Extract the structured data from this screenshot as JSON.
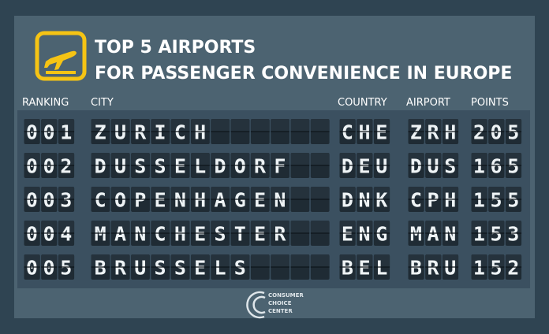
{
  "header": {
    "title_lines": [
      "TOP 5 AIRPORTS",
      "FOR PASSENGER CONVENIENCE IN EUROPE"
    ]
  },
  "table": {
    "columns": [
      "RANKING",
      "CITY",
      "COUNTRY",
      "AIRPORT",
      "POINTS"
    ],
    "rows": [
      [
        "001",
        "ZURICH",
        "CHE",
        "ZRH",
        205
      ],
      [
        "002",
        "DUSSELDORF",
        "DEU",
        "DUS",
        165
      ],
      [
        "003",
        "COPENHAGEN",
        "DNK",
        "CPH",
        155
      ],
      [
        "004",
        "MANCHESTER",
        "ENG",
        "MAN",
        153
      ],
      [
        "005",
        "BRUSSELS",
        "BEL",
        "BRU",
        152
      ]
    ]
  },
  "footer": {
    "logo_lines": [
      "CONSUMER",
      "CHOICE",
      "CENTER"
    ]
  }
}
